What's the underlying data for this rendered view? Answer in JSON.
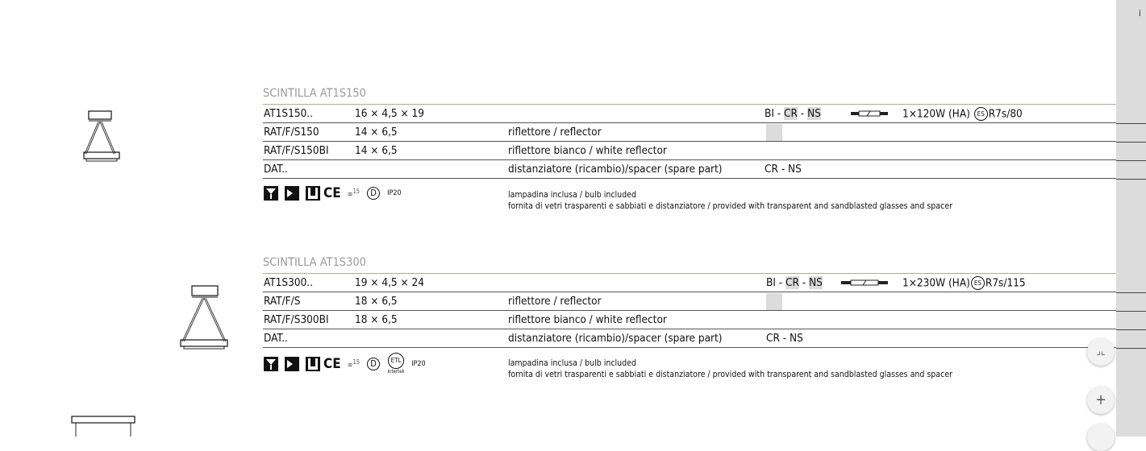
{
  "info_label": "i",
  "blocks": [
    {
      "title": "SCINTILLA AT1S150",
      "rows": [
        {
          "code": "AT1S150..",
          "dims": "16 × 4,5 × 19",
          "desc": ""
        },
        {
          "code": "RAT/F/S150",
          "dims": "14 × 6,5",
          "desc": "riflettore / reflector"
        },
        {
          "code": "RAT/F/S150BI",
          "dims": "14 × 6,5",
          "desc": "riflettore bianco / white reflector"
        },
        {
          "code": "DAT..",
          "dims": "",
          "desc": "distanziatore (ricambio)/spacer (spare part)",
          "finish": "CR - NS"
        }
      ],
      "finishes": {
        "bi": "BI",
        "sep": " - ",
        "cr": "CR",
        "ns": "NS"
      },
      "wattage": "1×120W (HA)",
      "es": "ES",
      "socket": "R7s/80",
      "ip": "IP20",
      "cert15": "15",
      "notes": [
        "lampadina inclusa / bulb included",
        "fornita di vetri trasparenti e sabbiati e distanziatore / provided with transparent and sandblasted glasses and spacer"
      ]
    },
    {
      "title": "SCINTILLA AT1S300",
      "rows": [
        {
          "code": "AT1S300..",
          "dims": "19 × 4,5 × 24",
          "desc": ""
        },
        {
          "code": "RAT/F/S",
          "dims": "18 × 6,5",
          "desc": "riflettore / reflector"
        },
        {
          "code": "RAT/F/S300BI",
          "dims": "18 × 6,5",
          "desc": "riflettore bianco / white reflector"
        },
        {
          "code": "DAT..",
          "dims": "",
          "desc": "distanziatore (ricambio)/spacer (spare part)",
          "finish": "CR - NS"
        }
      ],
      "finishes": {
        "bi": "BI",
        "sep": " - ",
        "cr": "CR",
        "ns": "NS"
      },
      "wattage": "1×230W (HA)",
      "es": "ES",
      "socket": "R7s/115",
      "ip": "IP20",
      "cert15": "15",
      "intertek": "Intertek",
      "notes": [
        "lampadina inclusa / bulb included",
        "fornita di vetri trasparenti e sabbiati e distanziatore / provided with transparent and sandblasted glasses and spacer"
      ]
    }
  ],
  "controls": {
    "collapse_icon": "collapse-icon",
    "zoom_in_label": "+"
  }
}
